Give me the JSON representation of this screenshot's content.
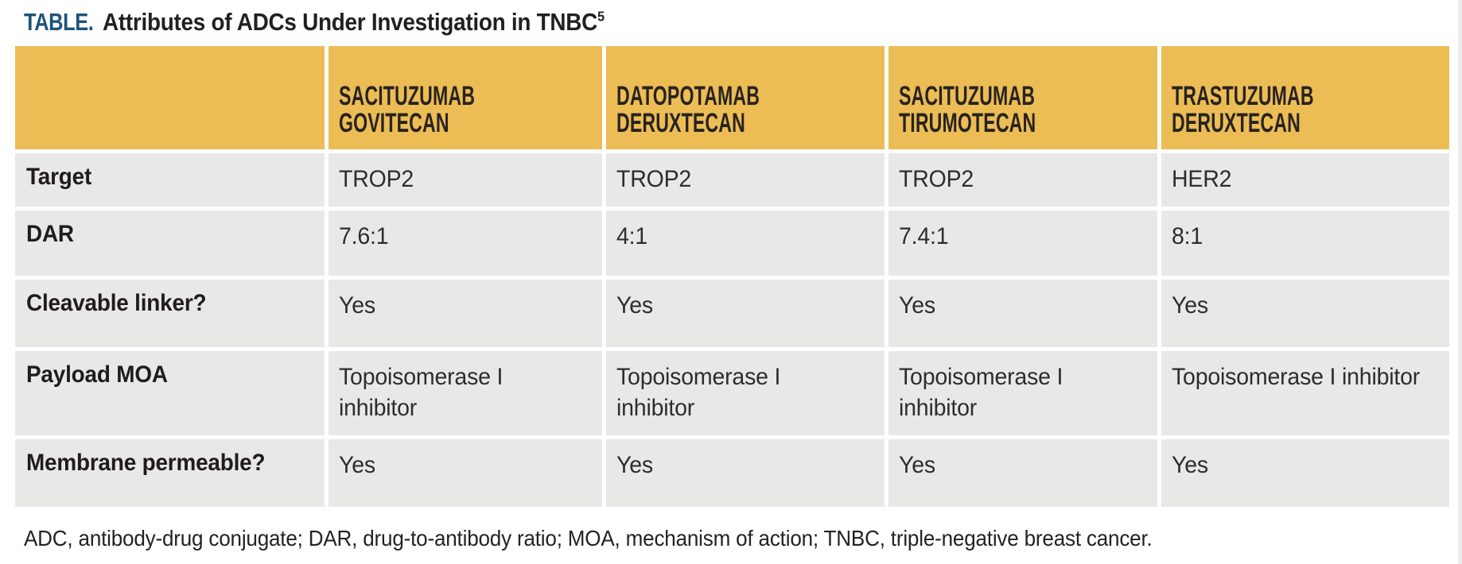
{
  "title": {
    "prefix": "TABLE.",
    "text": " Attributes of ADCs Under Investigation in TNBC",
    "superscript": "5"
  },
  "table": {
    "columns": [
      "SACITUZUMAB GOVITECAN",
      "DATOPOTAMAB DERUXTECAN",
      "SACITUZUMAB TIRUMOTECAN",
      "TRASTUZUMAB DERUXTECAN"
    ],
    "rows": [
      {
        "label": "Target",
        "values": [
          "TROP2",
          "TROP2",
          "TROP2",
          "HER2"
        ]
      },
      {
        "label": "DAR",
        "values": [
          "7.6:1",
          "4:1",
          "7.4:1",
          "8:1"
        ]
      },
      {
        "label": "Cleavable linker?",
        "values": [
          "Yes",
          "Yes",
          "Yes",
          "Yes"
        ]
      },
      {
        "label": "Payload MOA",
        "values": [
          "Topoisomerase I inhibitor",
          "Topoisomerase I inhibitor",
          "Topoisomerase I inhibitor",
          "Topoisomerase I inhibitor"
        ]
      },
      {
        "label": "Membrane permeable?",
        "values": [
          "Yes",
          "Yes",
          "Yes",
          "Yes"
        ]
      }
    ]
  },
  "footnote": "ADC, antibody-drug conjugate; DAR, drug-to-antibody ratio; MOA, mechanism of action; TNBC, triple-negative breast cancer.",
  "colors": {
    "header_bg": "#ecbc55",
    "row_bg": "#e8e8e7",
    "title_accent": "#1c5379",
    "text": "#231f20"
  },
  "chart_data": {
    "type": "table",
    "title": "TABLE. Attributes of ADCs Under Investigation in TNBC",
    "columns": [
      "",
      "SACITUZUMAB GOVITECAN",
      "DATOPOTAMAB DERUXTECAN",
      "SACITUZUMAB TIRUMOTECAN",
      "TRASTUZUMAB DERUXTECAN"
    ],
    "rows": [
      [
        "Target",
        "TROP2",
        "TROP2",
        "TROP2",
        "HER2"
      ],
      [
        "DAR",
        "7.6:1",
        "4:1",
        "7.4:1",
        "8:1"
      ],
      [
        "Cleavable linker?",
        "Yes",
        "Yes",
        "Yes",
        "Yes"
      ],
      [
        "Payload MOA",
        "Topoisomerase I inhibitor",
        "Topoisomerase I inhibitor",
        "Topoisomerase I inhibitor",
        "Topoisomerase I inhibitor"
      ],
      [
        "Membrane permeable?",
        "Yes",
        "Yes",
        "Yes",
        "Yes"
      ]
    ]
  }
}
